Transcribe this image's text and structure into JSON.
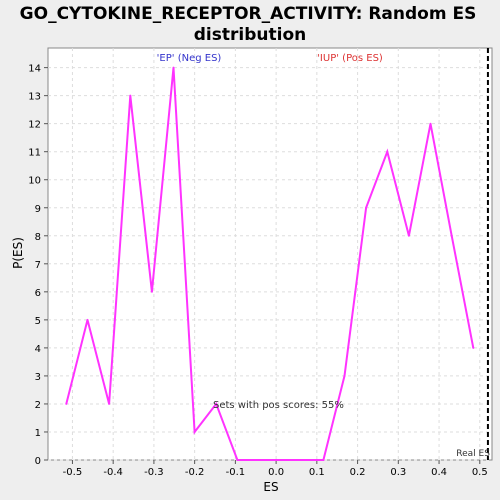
{
  "chart_data": {
    "type": "line",
    "title_line1": "GO_CYTOKINE_RECEPTOR_ACTIVITY: Random ES",
    "title_line2": "distribution",
    "xlabel": "ES",
    "ylabel": "P(ES)",
    "xlim": [
      -0.56,
      0.53
    ],
    "ylim": [
      0,
      14.7
    ],
    "x_ticks": [
      -0.5,
      -0.4,
      -0.3,
      -0.2,
      -0.1,
      0.0,
      0.1,
      0.2,
      0.3,
      0.4,
      0.5
    ],
    "x_tick_labels": [
      "-0.5",
      "-0.4",
      "-0.3",
      "-0.2",
      "-0.1",
      "0.0",
      "0.1",
      "0.2",
      "0.3",
      "0.4",
      "0.5"
    ],
    "y_ticks": [
      0,
      1,
      2,
      3,
      4,
      5,
      6,
      7,
      8,
      9,
      10,
      11,
      12,
      13,
      14
    ],
    "y_tick_labels": [
      "0",
      "1",
      "2",
      "3",
      "4",
      "5",
      "6",
      "7",
      "8",
      "9",
      "10",
      "11",
      "12",
      "13",
      "14"
    ],
    "grid": true,
    "series": [
      {
        "color": "#ff33ff",
        "x": [
          -0.515,
          -0.463,
          -0.41,
          -0.358,
          -0.305,
          -0.252,
          -0.2,
          -0.147,
          -0.095,
          -0.042,
          0.011,
          0.063,
          0.116,
          0.168,
          0.221,
          0.273,
          0.326,
          0.379,
          0.431,
          0.484
        ],
        "y": [
          2,
          5,
          2,
          13,
          6,
          14,
          1,
          2,
          0,
          0,
          0,
          0,
          0,
          3,
          9,
          11,
          8,
          12,
          8,
          4
        ]
      }
    ],
    "annotations": {
      "neg_label": "'EP' (Neg ES)",
      "neg_color": "#3333cc",
      "pos_label": "'IUP' (Pos ES)",
      "pos_color": "#dd3333",
      "pos_scores_text": "Sets with pos scores: 55%",
      "real_es_label": "Real ES",
      "real_es_x": 0.52
    }
  }
}
